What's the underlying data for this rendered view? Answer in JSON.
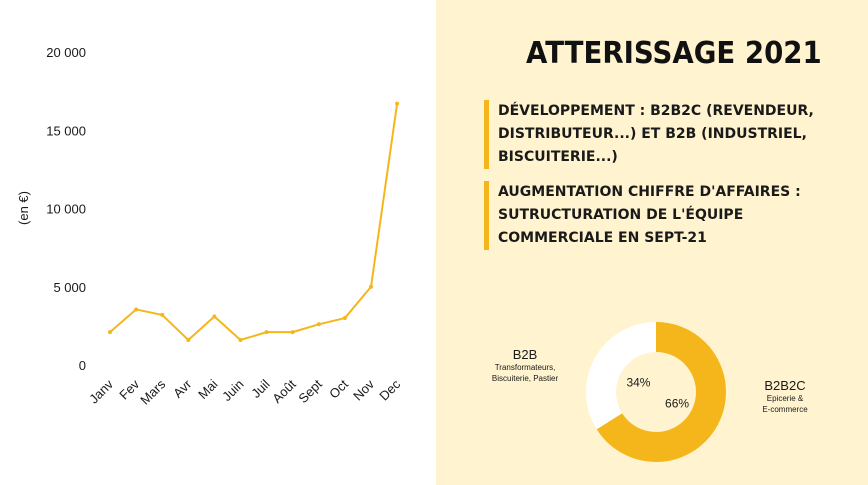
{
  "chart_data": [
    {
      "type": "line",
      "categories": [
        "Janv",
        "Fev",
        "Mars",
        "Avr",
        "Mai",
        "Juin",
        "Juil",
        "Août",
        "Sept",
        "Oct",
        "Nov",
        "Dec"
      ],
      "series": [
        {
          "values": [
            2100,
            3550,
            3200,
            1600,
            3100,
            1600,
            2100,
            2100,
            2600,
            3000,
            5000,
            16700
          ]
        }
      ],
      "ylabel": "(en €)",
      "ylim": [
        0,
        20000
      ],
      "yticks": [
        0,
        5000,
        10000,
        15000,
        20000
      ],
      "ytick_labels": [
        "0",
        "5 000",
        "10 000",
        "15 000",
        "20 000"
      ],
      "grid": false,
      "color": "#f5b61b"
    },
    {
      "type": "pie",
      "slices": [
        {
          "name": "B2B",
          "description": "Transformateurs, Biscuiterie, Pastier",
          "value": 34,
          "label": "34%",
          "color": "#ffffff"
        },
        {
          "name": "B2B2C",
          "description": "Epicerie & E-commerce",
          "value": 66,
          "label": "66%",
          "color": "#f5b61b"
        }
      ]
    }
  ],
  "panel": {
    "title": "ATTERISSAGE 2021",
    "points": [
      "DÉVELOPPEMENT : B2B2C (REVENDEUR, DISTRIBUTEUR...) ET B2B (INDUSTRIEL, BISCUITERIE...)",
      "AUGMENTATION CHIFFRE D'AFFAIRES : SUTRUCTURATION DE L'ÉQUIPE COMMERCIALE EN SEPT-21"
    ]
  },
  "segments": {
    "b2b": {
      "title": "B2B",
      "line1": "Transformateurs,",
      "line2": "Biscuiterie, Pastier"
    },
    "b2b2c": {
      "title": "B2B2C",
      "line1": "Epicerie &",
      "line2": "E-commerce"
    }
  }
}
